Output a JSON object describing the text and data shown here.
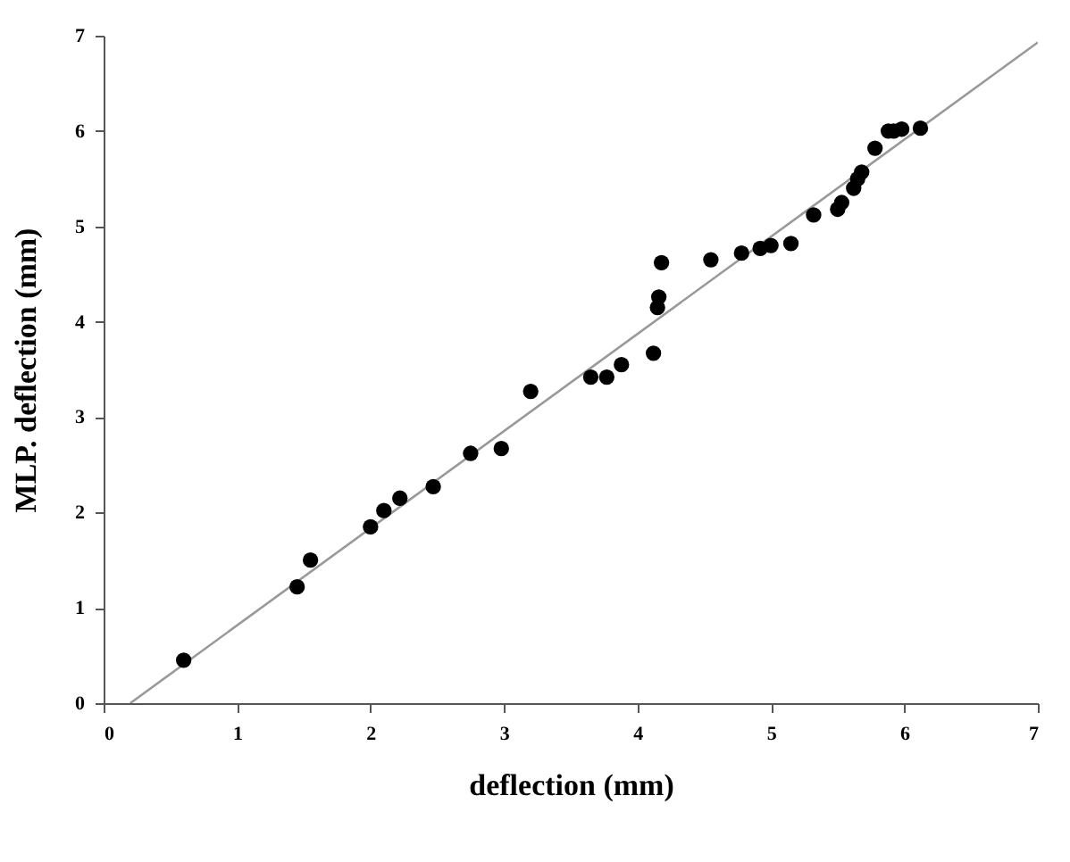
{
  "chart_data": {
    "type": "scatter",
    "xlabel": "deflection (mm)",
    "ylabel": "MLP. deflection (mm)",
    "xlim": [
      0,
      7
    ],
    "ylim": [
      0,
      7
    ],
    "xticks": [
      0,
      1,
      2,
      3,
      4,
      5,
      6,
      7
    ],
    "yticks": [
      0,
      1,
      2,
      3,
      4,
      5,
      6,
      7
    ],
    "grid": false,
    "series": [
      {
        "marker": "circle",
        "color": "#000000",
        "x": [
          0.6,
          1.45,
          1.55,
          2.0,
          2.1,
          2.22,
          2.47,
          2.75,
          2.98,
          3.2,
          3.65,
          3.77,
          3.88,
          4.12,
          4.15,
          4.16,
          4.18,
          4.55,
          4.78,
          4.92,
          5.0,
          5.15,
          5.32,
          5.5,
          5.53,
          5.62,
          5.65,
          5.68,
          5.78,
          5.88,
          5.92,
          5.98,
          6.12
        ],
        "values": [
          0.45,
          1.22,
          1.5,
          1.85,
          2.02,
          2.15,
          2.27,
          2.62,
          2.67,
          3.27,
          3.42,
          3.42,
          3.55,
          3.67,
          4.15,
          4.26,
          4.62,
          4.65,
          4.72,
          4.77,
          4.8,
          4.82,
          5.12,
          5.18,
          5.25,
          5.4,
          5.5,
          5.57,
          5.82,
          6.0,
          6.0,
          6.02,
          6.03
        ]
      },
      {
        "type": "line",
        "color": "#999999",
        "x": [
          0.2,
          7
        ],
        "values": [
          0,
          6.93
        ]
      }
    ]
  }
}
